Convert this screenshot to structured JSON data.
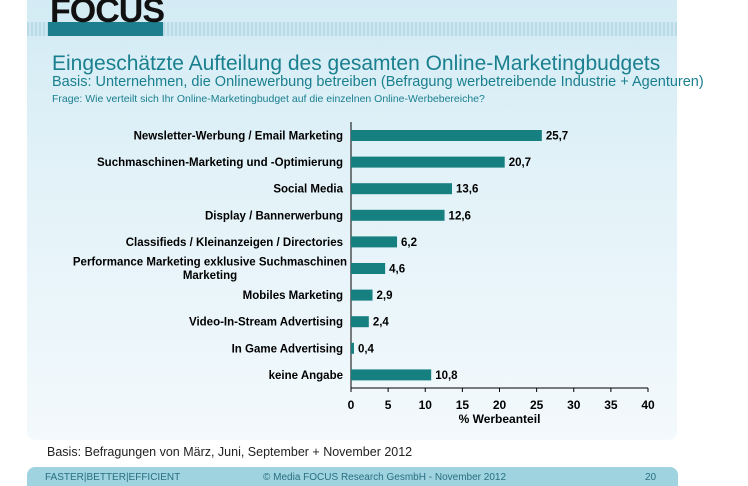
{
  "logo": {
    "text": "FOCUS"
  },
  "header": {
    "title": "Eingeschätzte Aufteilung des gesamten Online-Marketingbudgets",
    "subtitle": "Basis: Unternehmen, die Onlinewerbung betreiben (Befragung werbetreibende Industrie + Agenturen)",
    "question": "Frage: Wie verteilt sich Ihr Online-Marketingbudget auf die einzelnen Online-Werbebereiche?"
  },
  "chart_data": {
    "type": "bar",
    "orientation": "horizontal",
    "categories": [
      "Newsletter-Werbung / Email Marketing",
      "Suchmaschinen-Marketing und -Optimierung",
      "Social Media",
      "Display / Bannerwerbung",
      "Classifieds / Kleinanzeigen / Directories",
      "Performance Marketing exklusive Suchmaschinen Marketing",
      "Mobiles Marketing",
      "Video-In-Stream Advertising",
      "In Game Advertising",
      "keine Angabe"
    ],
    "values": [
      25.7,
      20.7,
      13.6,
      12.6,
      6.2,
      4.6,
      2.9,
      2.4,
      0.4,
      10.8
    ],
    "value_labels": [
      "25,7",
      "20,7",
      "13,6",
      "12,6",
      "6,2",
      "4,6",
      "2,9",
      "2,4",
      "0,4",
      "10,8"
    ],
    "xlabel": "% Werbeanteil",
    "xlim": [
      0,
      40
    ],
    "xticks": [
      0,
      5,
      10,
      15,
      20,
      25,
      30,
      35,
      40
    ],
    "bar_color": "#168080"
  },
  "basis": "Basis: Befragungen von März, Juni, September + November 2012",
  "footer": {
    "left": "FASTER|BETTER|EFFICIENT",
    "center": "© Media FOCUS Research GesmbH - November 2012",
    "page": "20"
  }
}
